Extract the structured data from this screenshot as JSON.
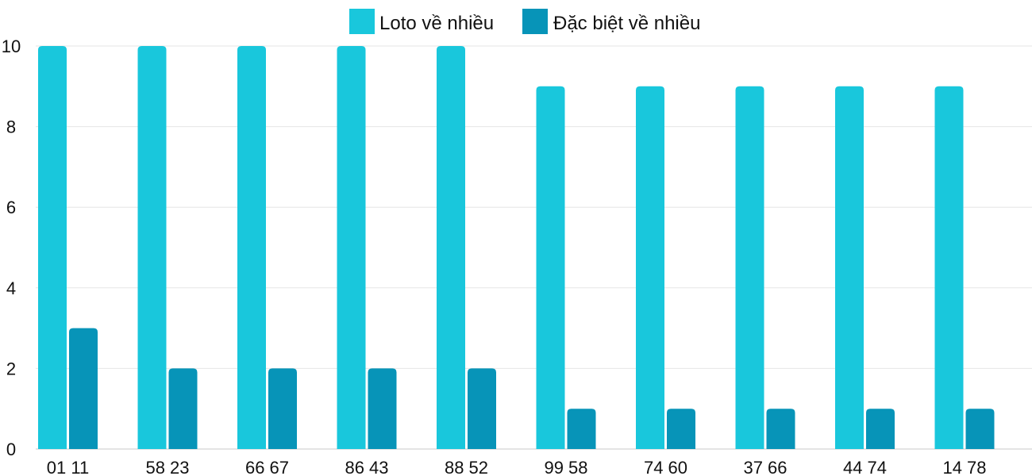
{
  "chart_data": {
    "type": "bar",
    "categories": [
      "01 11",
      "58 23",
      "66 67",
      "86 43",
      "88 52",
      "99 58",
      "74 60",
      "37 66",
      "44 74",
      "14 78"
    ],
    "series": [
      {
        "name": "Loto về nhiều",
        "values": [
          10,
          10,
          10,
          10,
          10,
          9,
          9,
          9,
          9,
          9
        ],
        "color": "#19c7dc"
      },
      {
        "name": "Đặc biệt về nhiều",
        "values": [
          3,
          2,
          2,
          2,
          2,
          1,
          1,
          1,
          1,
          1
        ],
        "color": "#0794b8"
      }
    ],
    "title": "",
    "xlabel": "",
    "ylabel": "",
    "ylim": [
      0,
      10
    ],
    "yticks": [
      0,
      2,
      4,
      6,
      8,
      10
    ],
    "grid": true,
    "legend": "top-center"
  }
}
